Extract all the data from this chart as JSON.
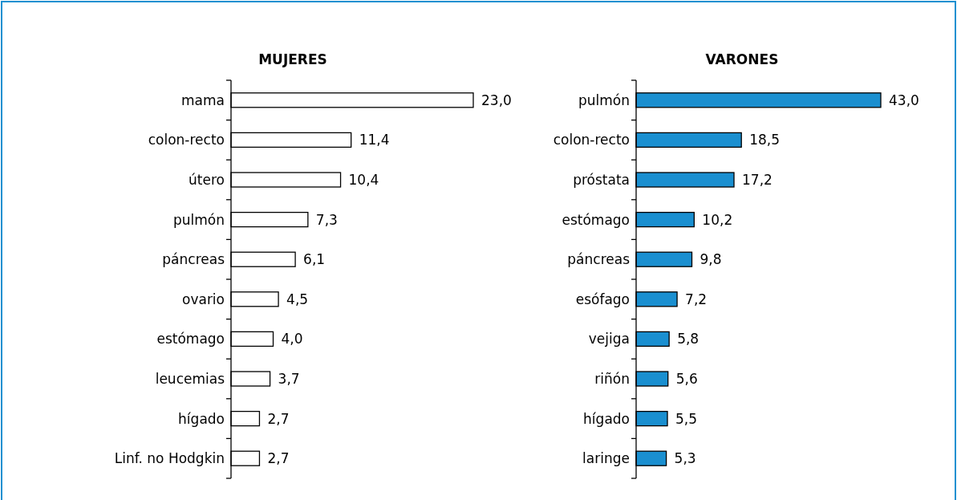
{
  "chart_data": [
    {
      "type": "bar",
      "orientation": "horizontal",
      "title": "MUJERES",
      "categories": [
        "mama",
        "colon-recto",
        "útero",
        "pulmón",
        "páncreas",
        "ovario",
        "estómago",
        "leucemias",
        "hígado",
        "Linf. no Hodgkin"
      ],
      "values": [
        23.0,
        11.4,
        10.4,
        7.3,
        6.1,
        4.5,
        4.0,
        3.7,
        2.7,
        2.7
      ],
      "value_labels": [
        "23,0",
        "11,4",
        "10,4",
        "7,3",
        "6,1",
        "4,5",
        "4,0",
        "3,7",
        "2,7",
        "2,7"
      ],
      "color": "#ffffff"
    },
    {
      "type": "bar",
      "orientation": "horizontal",
      "title": "VARONES",
      "categories": [
        "pulmón",
        "colon-recto",
        "próstata",
        "estómago",
        "páncreas",
        "esófago",
        "vejiga",
        "riñón",
        "hígado",
        "laringe"
      ],
      "values": [
        43.0,
        18.5,
        17.2,
        10.2,
        9.8,
        7.2,
        5.8,
        5.6,
        5.5,
        5.3
      ],
      "value_labels": [
        "43,0",
        "18,5",
        "17,2",
        "10,2",
        "9,8",
        "7,2",
        "5,8",
        "5,6",
        "5,5",
        "5,3"
      ],
      "color": "#1a8fd0"
    }
  ]
}
